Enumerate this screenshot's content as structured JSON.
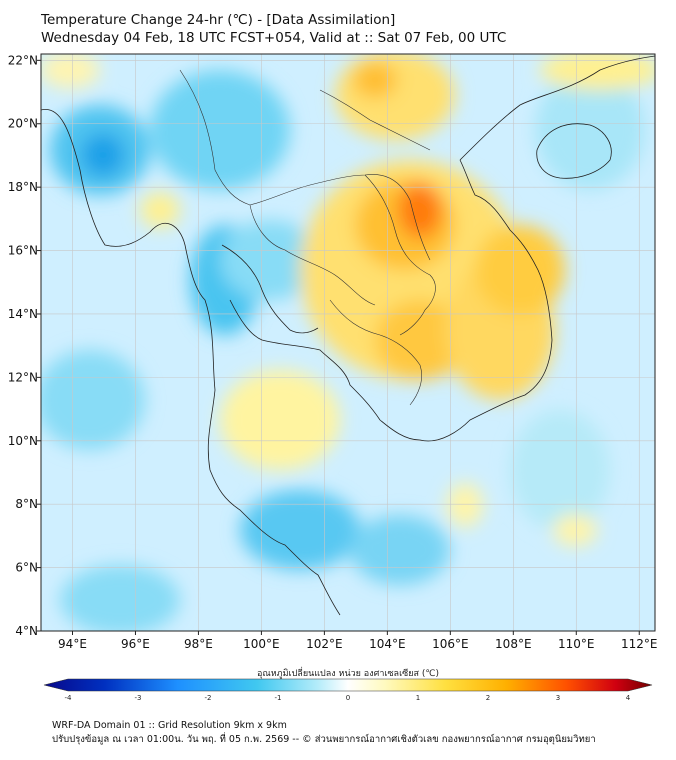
{
  "header": {
    "title_line1": "Temperature Change 24-hr (℃) - [Data Assimilation]",
    "title_line2": "Wednesday 04 Feb, 18 UTC FCST+054, Valid at :: Sat 07 Feb, 00 UTC"
  },
  "map": {
    "lon_range": [
      93,
      112.5
    ],
    "lat_range": [
      4,
      22.2
    ],
    "lon_ticks": [
      "94°E",
      "96°E",
      "98°E",
      "100°E",
      "102°E",
      "104°E",
      "106°E",
      "108°E",
      "110°E",
      "112°E"
    ],
    "lat_ticks": [
      "4°N",
      "6°N",
      "8°N",
      "10°N",
      "12°N",
      "14°N",
      "16°N",
      "18°N",
      "20°N",
      "22°N"
    ],
    "grid": true,
    "base_color": "#cfefff"
  },
  "colorbar": {
    "title": "อุณหภูมิเปลี่ยนแปลง หน่วย องศาเซลเซียส (℃)",
    "tick_labels": [
      "-4",
      "-3",
      "-2",
      "-1",
      "0",
      "1",
      "2",
      "3",
      "4"
    ],
    "colors": [
      "#08088a",
      "#0040d0",
      "#1e90ff",
      "#40c8f0",
      "#a8e6f8",
      "#ffffff",
      "#fff8b0",
      "#ffe040",
      "#ffb000",
      "#ff6000",
      "#e01010",
      "#800000"
    ]
  },
  "footer": {
    "line1": "WRF-DA Domain 01 :: Grid Resolution 9km x 9km",
    "line2": "ปรับปรุงข้อมูล ณ เวลา 01:00น. วัน พฤ. ที่ 05 ก.พ. 2569 -- © ส่วนพยากรณ์อากาศเชิงตัวเลข กองพยากรณ์อากาศ กรมอุตุนิยมวิทยา"
  }
}
